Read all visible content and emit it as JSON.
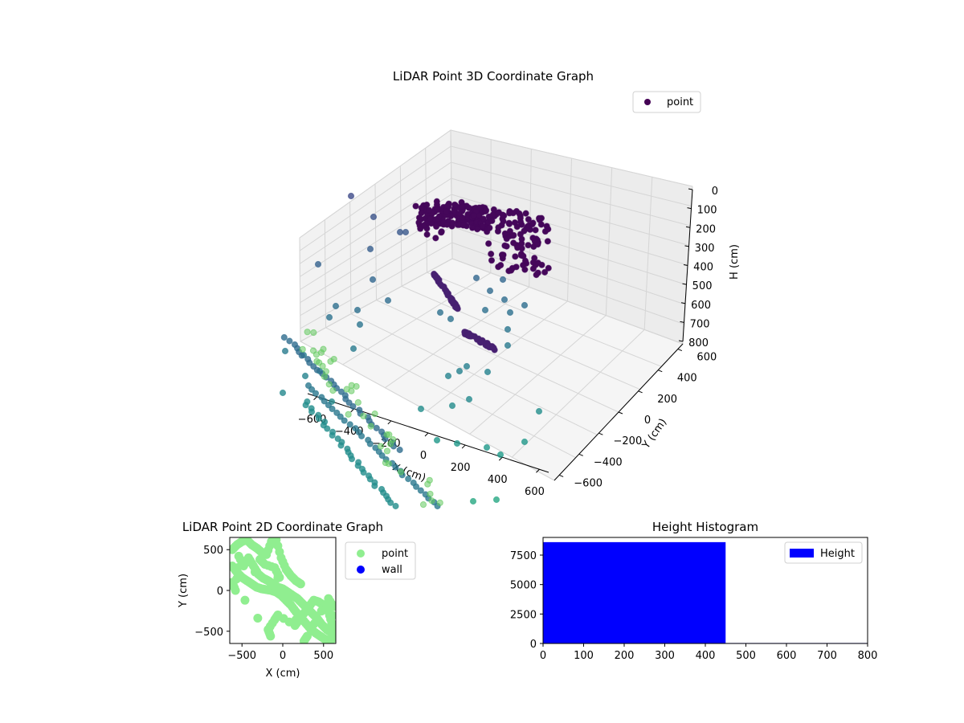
{
  "chart_data": [
    {
      "type": "scatter3d",
      "title": "LiDAR Point 3D Coordinate Graph",
      "xlabel": "X (cm)",
      "ylabel": "Y (cm)",
      "zlabel": "H (cm)",
      "xticks": [
        "−600",
        "−400",
        "−200",
        "0",
        "200",
        "400",
        "600"
      ],
      "yticks": [
        "−600",
        "−400",
        "−200",
        "0",
        "200",
        "400",
        "600"
      ],
      "zticks": [
        "0",
        "100",
        "200",
        "300",
        "400",
        "500",
        "600",
        "700",
        "800"
      ],
      "xlim": [
        -650,
        650
      ],
      "ylim": [
        -650,
        650
      ],
      "zlim": [
        0,
        800
      ],
      "z_inverted": true,
      "grid": true,
      "legend": {
        "position": "top-right",
        "entries": [
          {
            "label": "point",
            "color": "#440154"
          }
        ]
      },
      "colormap": "viridis (by height)",
      "series": [
        {
          "name": "point",
          "description_points": [
            {
              "x": -80,
              "y": 380,
              "h": 40
            },
            {
              "x": 40,
              "y": 520,
              "h": 50
            },
            {
              "x": 130,
              "y": 470,
              "h": 60
            },
            {
              "x": 240,
              "y": 430,
              "h": 70
            },
            {
              "x": 310,
              "y": 360,
              "h": 60
            },
            {
              "x": 360,
              "y": 300,
              "h": 50
            },
            {
              "x": 380,
              "y": 240,
              "h": 40
            },
            {
              "x": -160,
              "y": -120,
              "h": 430
            },
            {
              "x": -60,
              "y": -160,
              "h": 480
            },
            {
              "x": 60,
              "y": -220,
              "h": 540
            },
            {
              "x": 200,
              "y": -260,
              "h": 600
            },
            {
              "x": -550,
              "y": -500,
              "h": 780
            },
            {
              "x": -400,
              "y": -560,
              "h": 800
            },
            {
              "x": 200,
              "y": -620,
              "h": 800
            }
          ]
        }
      ]
    },
    {
      "type": "scatter",
      "title": "LiDAR Point 2D Coordinate Graph",
      "xlabel": "X (cm)",
      "ylabel": "Y (cm)",
      "xticks": [
        "−500",
        "0",
        "500"
      ],
      "yticks": [
        "−500",
        "0",
        "500"
      ],
      "xlim": [
        -650,
        650
      ],
      "ylim": [
        -650,
        650
      ],
      "legend": {
        "position": "right",
        "entries": [
          {
            "label": "point",
            "color": "#90ee90"
          },
          {
            "label": "wall",
            "color": "#0000ff"
          }
        ]
      },
      "series": [
        {
          "name": "point",
          "color": "#90ee90",
          "points": [
            [
              -620,
              500
            ],
            [
              -560,
              560
            ],
            [
              -500,
              600
            ],
            [
              -440,
              620
            ],
            [
              -380,
              560
            ],
            [
              -320,
              520
            ],
            [
              -260,
              470
            ],
            [
              -200,
              440
            ],
            [
              -140,
              600
            ],
            [
              -80,
              620
            ],
            [
              -20,
              400
            ],
            [
              40,
              260
            ],
            [
              100,
              180
            ],
            [
              160,
              120
            ],
            [
              220,
              80
            ],
            [
              -620,
              300
            ],
            [
              -560,
              220
            ],
            [
              -500,
              160
            ],
            [
              -440,
              120
            ],
            [
              -380,
              80
            ],
            [
              -320,
              40
            ],
            [
              -260,
              20
            ],
            [
              -200,
              10
            ],
            [
              -140,
              0
            ],
            [
              -80,
              -20
            ],
            [
              -20,
              -60
            ],
            [
              40,
              -120
            ],
            [
              100,
              -180
            ],
            [
              160,
              -260
            ],
            [
              220,
              -330
            ],
            [
              280,
              -400
            ],
            [
              340,
              -470
            ],
            [
              400,
              -520
            ],
            [
              460,
              -560
            ],
            [
              520,
              -600
            ],
            [
              580,
              -620
            ],
            [
              620,
              -580
            ],
            [
              600,
              -400
            ],
            [
              560,
              -260
            ],
            [
              500,
              -180
            ],
            [
              440,
              -140
            ],
            [
              380,
              -120
            ],
            [
              320,
              -200
            ],
            [
              260,
              -280
            ],
            [
              200,
              -360
            ],
            [
              150,
              -430
            ],
            [
              -60,
              -300
            ],
            [
              -100,
              -360
            ],
            [
              -180,
              -480
            ],
            [
              -150,
              -560
            ],
            [
              -620,
              100
            ],
            [
              -580,
              0
            ],
            [
              -540,
              420
            ],
            [
              -480,
              300
            ],
            [
              -420,
              400
            ],
            [
              -360,
              300
            ],
            [
              -300,
              200
            ],
            [
              -240,
              150
            ],
            [
              -180,
              120
            ],
            [
              -120,
              80
            ],
            [
              -60,
              40
            ],
            [
              0,
              20
            ],
            [
              60,
              -20
            ],
            [
              120,
              -60
            ],
            [
              180,
              -100
            ],
            [
              240,
              -160
            ],
            [
              300,
              -220
            ],
            [
              360,
              -280
            ],
            [
              420,
              -340
            ],
            [
              480,
              -420
            ],
            [
              540,
              -480
            ],
            [
              600,
              -520
            ],
            [
              620,
              -200
            ],
            [
              560,
              -100
            ],
            [
              300,
              -560
            ],
            [
              260,
              -620
            ],
            [
              -40,
              160
            ],
            [
              -100,
              280
            ],
            [
              -220,
              320
            ],
            [
              -280,
              380
            ]
          ]
        }
      ]
    },
    {
      "type": "bar",
      "title": "Height Histogram",
      "xlabel": "",
      "ylabel": "",
      "xticks": [
        "0",
        "100",
        "200",
        "300",
        "400",
        "500",
        "600",
        "700",
        "800"
      ],
      "yticks": [
        "0",
        "2500",
        "5000",
        "7500"
      ],
      "xlim": [
        0,
        800
      ],
      "ylim": [
        0,
        9000
      ],
      "legend": {
        "position": "top-right",
        "entries": [
          {
            "label": "Height",
            "color": "#0000ff"
          }
        ]
      },
      "bars": [
        {
          "x0": 0,
          "x1": 450,
          "value": 8600
        },
        {
          "x0": 450,
          "x1": 800,
          "value": 40
        }
      ]
    }
  ]
}
